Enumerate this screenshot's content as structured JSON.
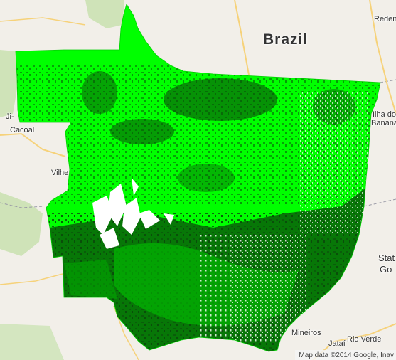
{
  "map": {
    "country_label": "Brazil",
    "city_labels": {
      "redencao": "Redenç",
      "ji_parana": "Ji-",
      "cacoal": "Cacoal",
      "vilhena": "Vilhe",
      "ilha_do_bananal_line1": "Ilha do",
      "ilha_do_bananal_line2": "Banana",
      "state_goias_line1": "Stat",
      "state_goias_line2": "Go",
      "mineiros": "Mineiros",
      "jatai": "Jataí",
      "rio_verde": "Rio Verde"
    },
    "attribution": "Map data ©2014 Google, Inav",
    "colors": {
      "basemap": "#f2efe9",
      "forest_overlay": "#00ff00",
      "dense_forest": "#0a4a0a",
      "cleared_areas": "#ffffff",
      "park_areas": "#cfe3b8",
      "roads": "#f6d27a"
    }
  }
}
